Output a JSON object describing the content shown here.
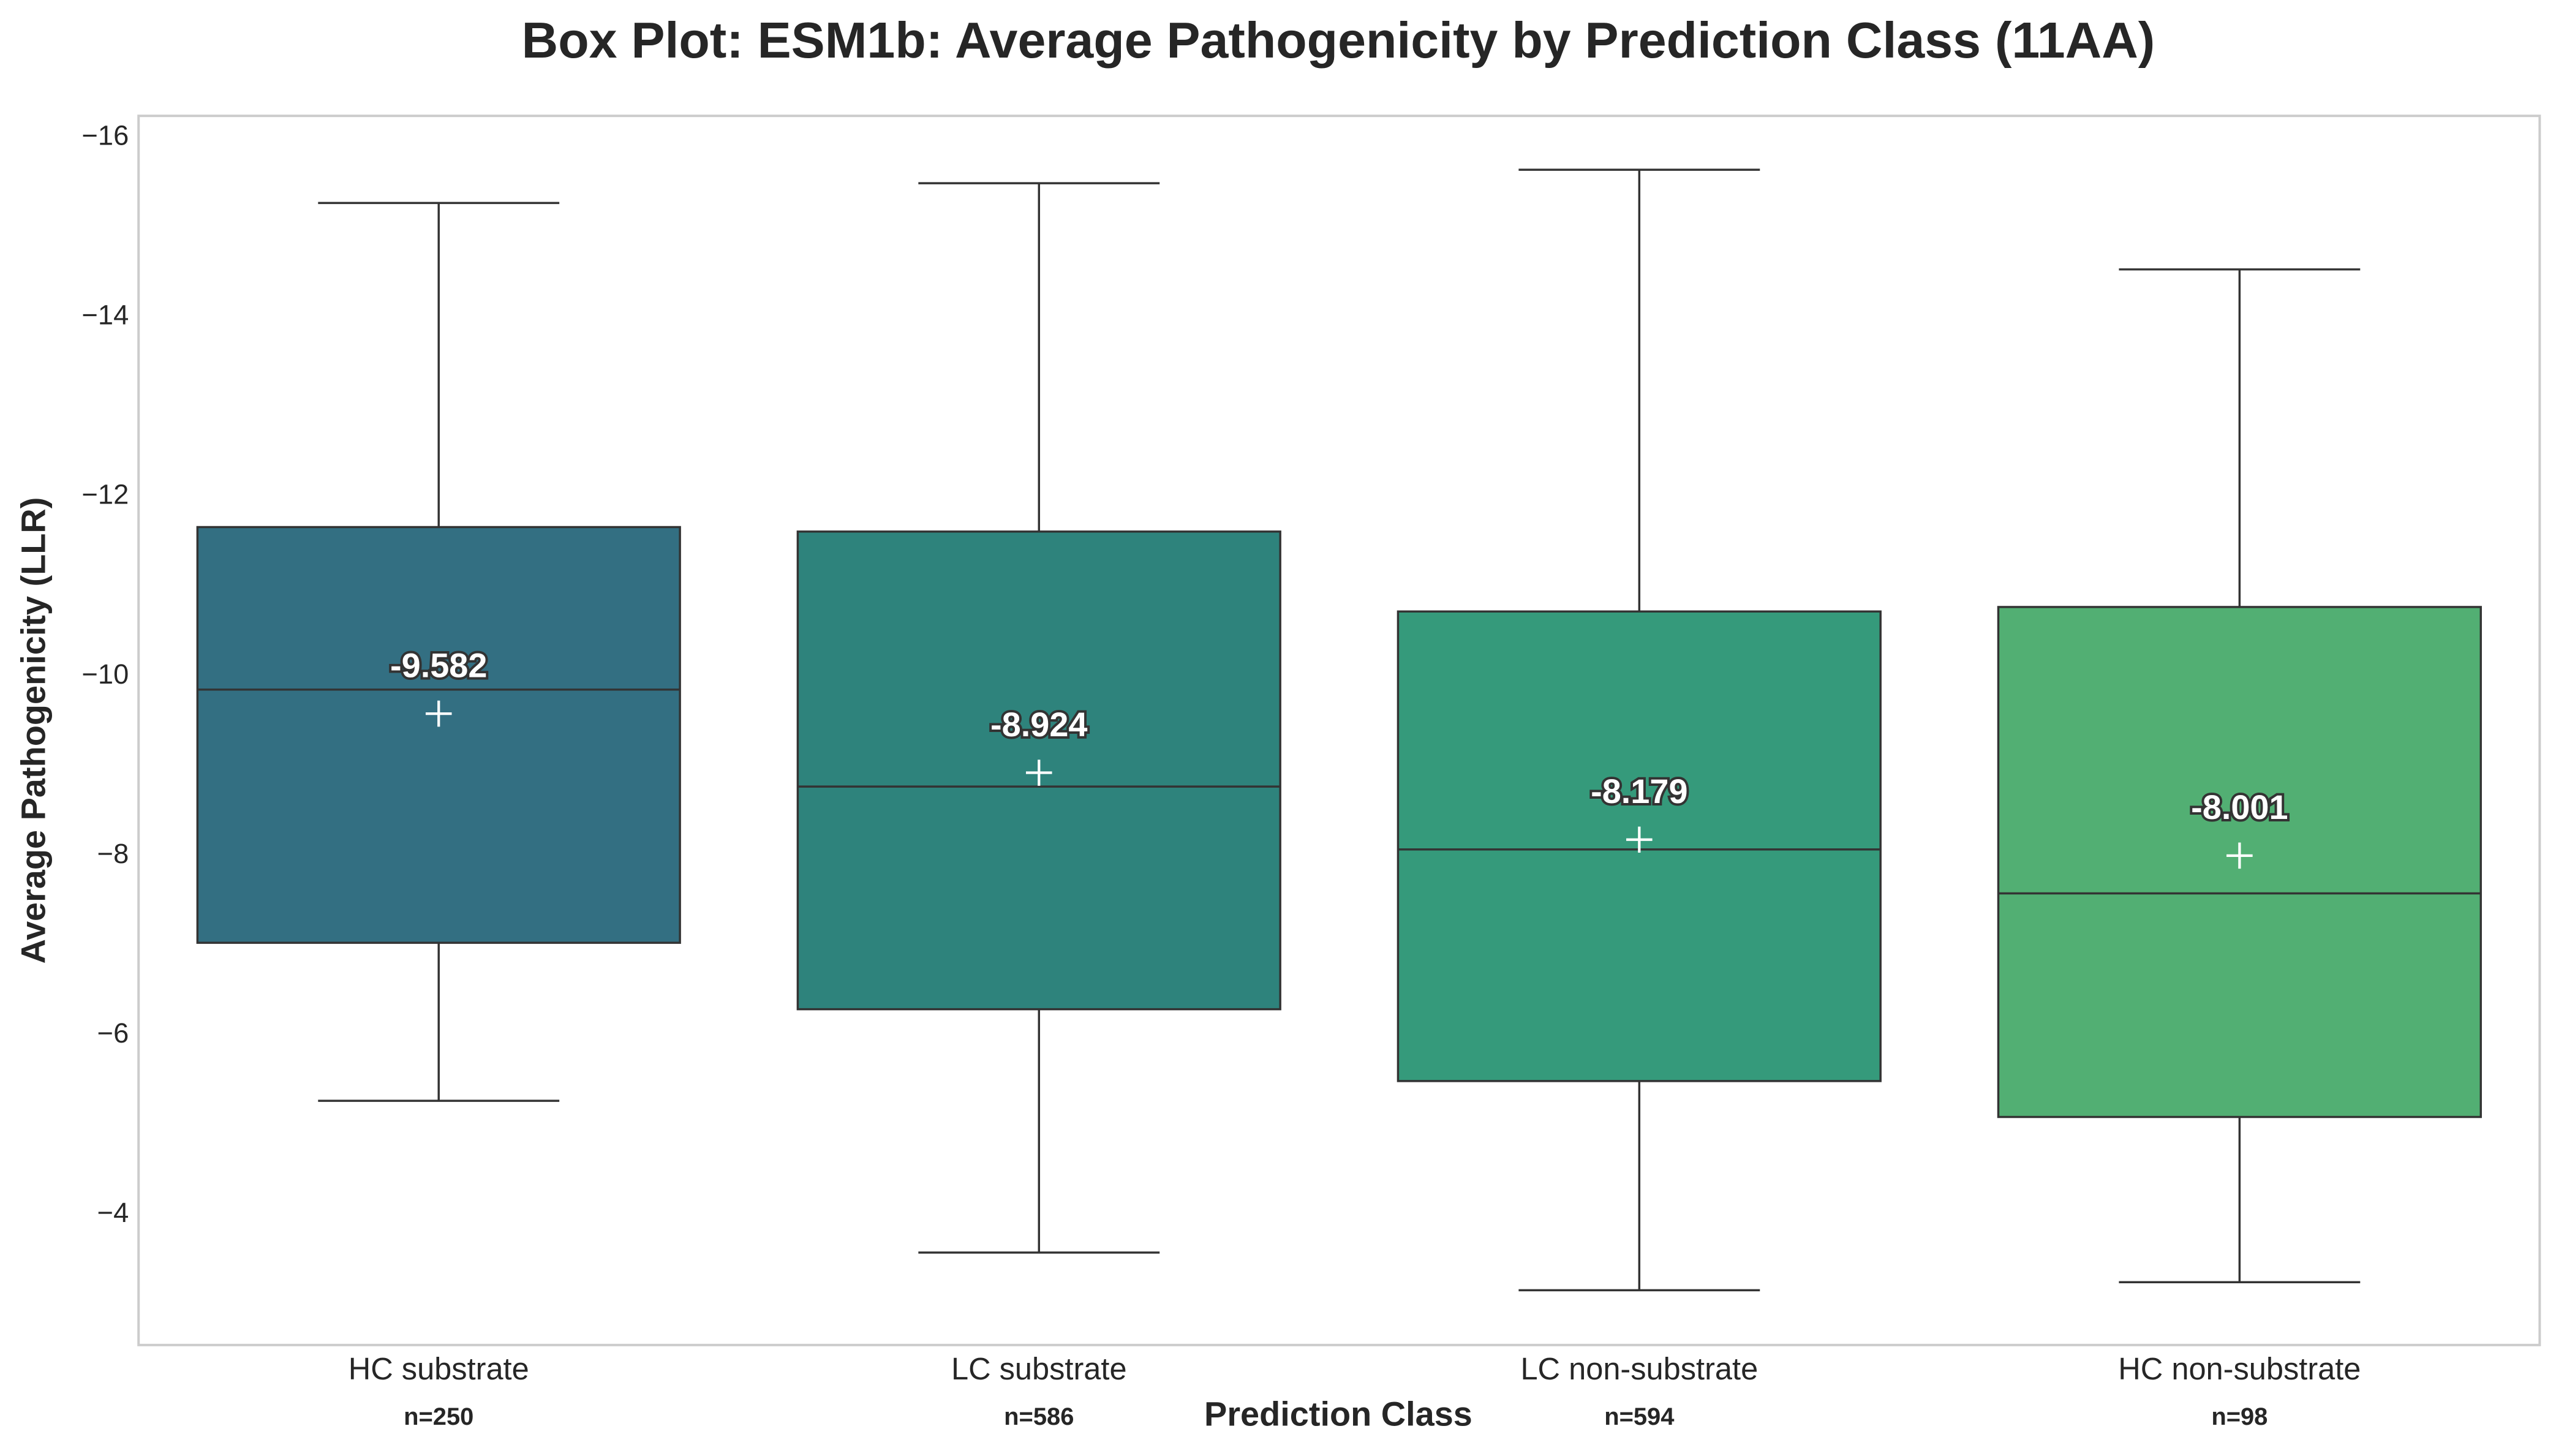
{
  "chart_data": {
    "type": "box",
    "title": "Box Plot: ESM1b: Average Pathogenicity by Prediction Class (11AA)",
    "x_label": "Prediction Class",
    "y_label": "Average Pathogenicity (LLR)",
    "categories": [
      "HC substrate",
      "LC substrate",
      "LC non-substrate",
      "HC non-substrate"
    ],
    "n_labels": [
      "n=250",
      "n=586",
      "n=594",
      "n=98"
    ],
    "colors": [
      "#336f82",
      "#2e837c",
      "#359a7b",
      "#52af73"
    ],
    "whisker_low": [
      -5.27,
      -3.58,
      -3.16,
      -3.25
    ],
    "q1": [
      -7.03,
      -6.29,
      -5.49,
      -5.09
    ],
    "median": [
      -9.85,
      -8.77,
      -8.07,
      -7.58
    ],
    "q3": [
      -11.66,
      -11.61,
      -10.72,
      -10.77
    ],
    "whisker_high": [
      -15.27,
      -15.49,
      -15.64,
      -14.53
    ],
    "means": [
      -9.582,
      -8.924,
      -8.179,
      -8.001
    ],
    "ylim": [
      -2.55,
      -16.24
    ],
    "yticks": [
      {
        "value": -16,
        "label": "−16"
      },
      {
        "value": -14,
        "label": "−14"
      },
      {
        "value": -12,
        "label": "−12"
      },
      {
        "value": -10,
        "label": "−10"
      },
      {
        "value": -8,
        "label": "−8"
      },
      {
        "value": -6,
        "label": "−6"
      },
      {
        "value": -4,
        "label": "−4"
      }
    ],
    "grid": false
  }
}
